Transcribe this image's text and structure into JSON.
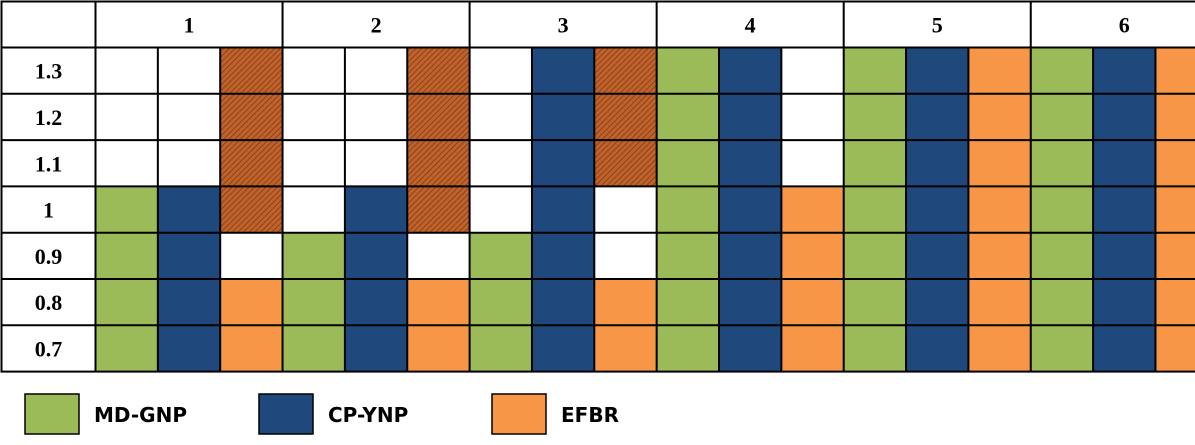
{
  "chart_data": {
    "type": "heatmap",
    "column_groups": [
      "1",
      "2",
      "3",
      "4",
      "5",
      "6"
    ],
    "columns_per_group": [
      "MD-GNP",
      "CP-YNP",
      "EFBR"
    ],
    "row_labels": [
      "1.3",
      "1.2",
      "1.1",
      "1",
      "0.9",
      "0.8",
      "0.7"
    ],
    "state_colors": {
      "MD-GNP": "#9bbb59",
      "CP-YNP": "#1f497d",
      "EFBR": "#f79646",
      "empty": "#ffffff",
      "hatched": "#c0622b"
    },
    "cells": [
      [
        "empty",
        "empty",
        "hatched",
        "empty",
        "empty",
        "hatched",
        "empty",
        "CP-YNP",
        "hatched",
        "MD-GNP",
        "CP-YNP",
        "empty",
        "MD-GNP",
        "CP-YNP",
        "EFBR",
        "MD-GNP",
        "CP-YNP",
        "EFBR"
      ],
      [
        "empty",
        "empty",
        "hatched",
        "empty",
        "empty",
        "hatched",
        "empty",
        "CP-YNP",
        "hatched",
        "MD-GNP",
        "CP-YNP",
        "empty",
        "MD-GNP",
        "CP-YNP",
        "EFBR",
        "MD-GNP",
        "CP-YNP",
        "EFBR"
      ],
      [
        "empty",
        "empty",
        "hatched",
        "empty",
        "empty",
        "hatched",
        "empty",
        "CP-YNP",
        "hatched",
        "MD-GNP",
        "CP-YNP",
        "empty",
        "MD-GNP",
        "CP-YNP",
        "EFBR",
        "MD-GNP",
        "CP-YNP",
        "EFBR"
      ],
      [
        "MD-GNP",
        "CP-YNP",
        "hatched",
        "empty",
        "CP-YNP",
        "hatched",
        "empty",
        "CP-YNP",
        "empty",
        "MD-GNP",
        "CP-YNP",
        "EFBR",
        "MD-GNP",
        "CP-YNP",
        "EFBR",
        "MD-GNP",
        "CP-YNP",
        "EFBR"
      ],
      [
        "MD-GNP",
        "CP-YNP",
        "empty",
        "MD-GNP",
        "CP-YNP",
        "empty",
        "MD-GNP",
        "CP-YNP",
        "empty",
        "MD-GNP",
        "CP-YNP",
        "EFBR",
        "MD-GNP",
        "CP-YNP",
        "EFBR",
        "MD-GNP",
        "CP-YNP",
        "EFBR"
      ],
      [
        "MD-GNP",
        "CP-YNP",
        "EFBR",
        "MD-GNP",
        "CP-YNP",
        "EFBR",
        "MD-GNP",
        "CP-YNP",
        "EFBR",
        "MD-GNP",
        "CP-YNP",
        "EFBR",
        "MD-GNP",
        "CP-YNP",
        "EFBR",
        "MD-GNP",
        "CP-YNP",
        "EFBR"
      ],
      [
        "MD-GNP",
        "CP-YNP",
        "EFBR",
        "MD-GNP",
        "CP-YNP",
        "EFBR",
        "MD-GNP",
        "CP-YNP",
        "EFBR",
        "MD-GNP",
        "CP-YNP",
        "EFBR",
        "MD-GNP",
        "CP-YNP",
        "EFBR",
        "MD-GNP",
        "CP-YNP",
        "EFBR"
      ]
    ],
    "legend": [
      {
        "name": "MD-GNP",
        "color": "#9bbb59"
      },
      {
        "name": "CP-YNP",
        "color": "#1f497d"
      },
      {
        "name": "EFBR",
        "color": "#f79646"
      }
    ]
  }
}
